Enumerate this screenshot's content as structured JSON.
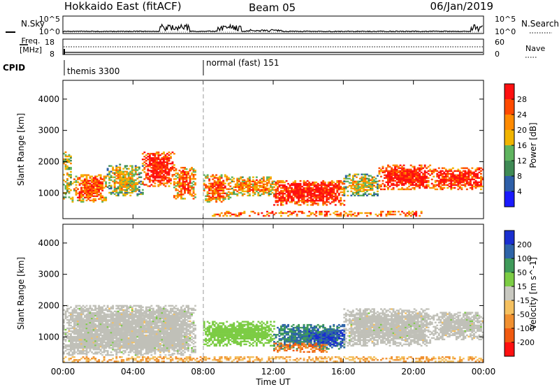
{
  "header": {
    "site": "Hokkaido East (fitACF)",
    "beam": "Beam 05",
    "date": "06/Jan/2019"
  },
  "sky_panel": {
    "left_label": "N.Sky",
    "right_label": "N.Search",
    "left_ticks": [
      "10^5",
      "10^0"
    ],
    "right_ticks": [
      "10^5",
      "10^0"
    ]
  },
  "freq_panel": {
    "left_label_1": "Freq.",
    "left_label_2": "[MHz]",
    "right_label": "Nave",
    "left_ticks": [
      "18",
      "8"
    ],
    "right_ticks": [
      "60",
      "0"
    ]
  },
  "cpid_panel": {
    "label": "CPID",
    "entries": [
      {
        "time": "00:00",
        "label": "themis 3300"
      },
      {
        "time": "08:00",
        "label": "normal (fast) 151"
      }
    ]
  },
  "x_axis": {
    "title": "Time UT",
    "ticks": [
      "00:00",
      "04:00",
      "08:00",
      "12:00",
      "16:00",
      "20:00",
      "00:00"
    ]
  },
  "range_axis": {
    "title": "Slant Range [km]",
    "ticks": [
      "1000",
      "2000",
      "3000",
      "4000"
    ]
  },
  "power_scale": {
    "title": "Power [dB]",
    "ticks": [
      "4",
      "8",
      "12",
      "16",
      "20",
      "24",
      "28"
    ],
    "colors": [
      "#1a1aff",
      "#2e5fa8",
      "#3f8a55",
      "#5fb45f",
      "#f0b400",
      "#ff8a00",
      "#ff4a00",
      "#ff1010"
    ]
  },
  "velocity_scale": {
    "title": "Velocity [m s^-1]",
    "ticks": [
      "200",
      "100",
      "50",
      "15",
      "-15",
      "-50",
      "-100",
      "-200"
    ],
    "colors": [
      "#1a2fd0",
      "#2e64a8",
      "#3f9a5a",
      "#7ccc44",
      "#c8c8c0",
      "#f4c060",
      "#f09030",
      "#f05a10",
      "#ff1010"
    ]
  },
  "ground_scatter_color": "#c0c0b8",
  "chart_data": [
    {
      "type": "heatmap",
      "title": "Power [dB]",
      "xlabel": "Time UT",
      "ylabel": "Slant Range [km]",
      "xlim": [
        "00:00",
        "24:00"
      ],
      "ylim": [
        180,
        4600
      ],
      "regions": [
        {
          "t": [
            0.0,
            0.5
          ],
          "r": [
            800,
            2300
          ],
          "level": 20
        },
        {
          "t": [
            0.5,
            2.5
          ],
          "r": [
            700,
            1600
          ],
          "level": 24
        },
        {
          "t": [
            2.5,
            4.5
          ],
          "r": [
            900,
            1900
          ],
          "level": 16
        },
        {
          "t": [
            4.5,
            6.3
          ],
          "r": [
            1200,
            2300
          ],
          "level": 28
        },
        {
          "t": [
            6.3,
            7.5
          ],
          "r": [
            800,
            1800
          ],
          "level": 24
        },
        {
          "t": [
            8.0,
            9.5
          ],
          "r": [
            700,
            1600
          ],
          "level": 24
        },
        {
          "t": [
            9.5,
            12.0
          ],
          "r": [
            900,
            1500
          ],
          "level": 20
        },
        {
          "t": [
            12.0,
            16.0
          ],
          "r": [
            600,
            1400
          ],
          "level": 28
        },
        {
          "t": [
            16.0,
            18.0
          ],
          "r": [
            900,
            1600
          ],
          "level": 16
        },
        {
          "t": [
            18.0,
            21.0
          ],
          "r": [
            1100,
            1900
          ],
          "level": 28
        },
        {
          "t": [
            21.0,
            24.0
          ],
          "r": [
            1100,
            1800
          ],
          "level": 28
        },
        {
          "t": [
            8.5,
            20.5
          ],
          "r": [
            250,
            400
          ],
          "level": 28
        }
      ]
    },
    {
      "type": "heatmap",
      "title": "Velocity [m s^-1]",
      "xlabel": "Time UT",
      "ylabel": "Slant Range [km]",
      "xlim": [
        "00:00",
        "24:00"
      ],
      "ylim": [
        180,
        4600
      ],
      "regions": [
        {
          "t": [
            0.0,
            7.5
          ],
          "r": [
            400,
            2000
          ],
          "value": "ground"
        },
        {
          "t": [
            8.0,
            12.0
          ],
          "r": [
            700,
            1500
          ],
          "value": 30
        },
        {
          "t": [
            12.0,
            16.0
          ],
          "r": [
            600,
            1400
          ],
          "value": 100
        },
        {
          "t": [
            14.0,
            16.0
          ],
          "r": [
            700,
            1200
          ],
          "value": 200
        },
        {
          "t": [
            12.0,
            15.0
          ],
          "r": [
            500,
            800
          ],
          "value": -100
        },
        {
          "t": [
            16.0,
            21.0
          ],
          "r": [
            700,
            1900
          ],
          "value": "ground"
        },
        {
          "t": [
            21.0,
            24.0
          ],
          "r": [
            900,
            1800
          ],
          "value": "ground"
        },
        {
          "t": [
            0.0,
            24.0
          ],
          "r": [
            200,
            350
          ],
          "value": -50
        }
      ]
    }
  ]
}
